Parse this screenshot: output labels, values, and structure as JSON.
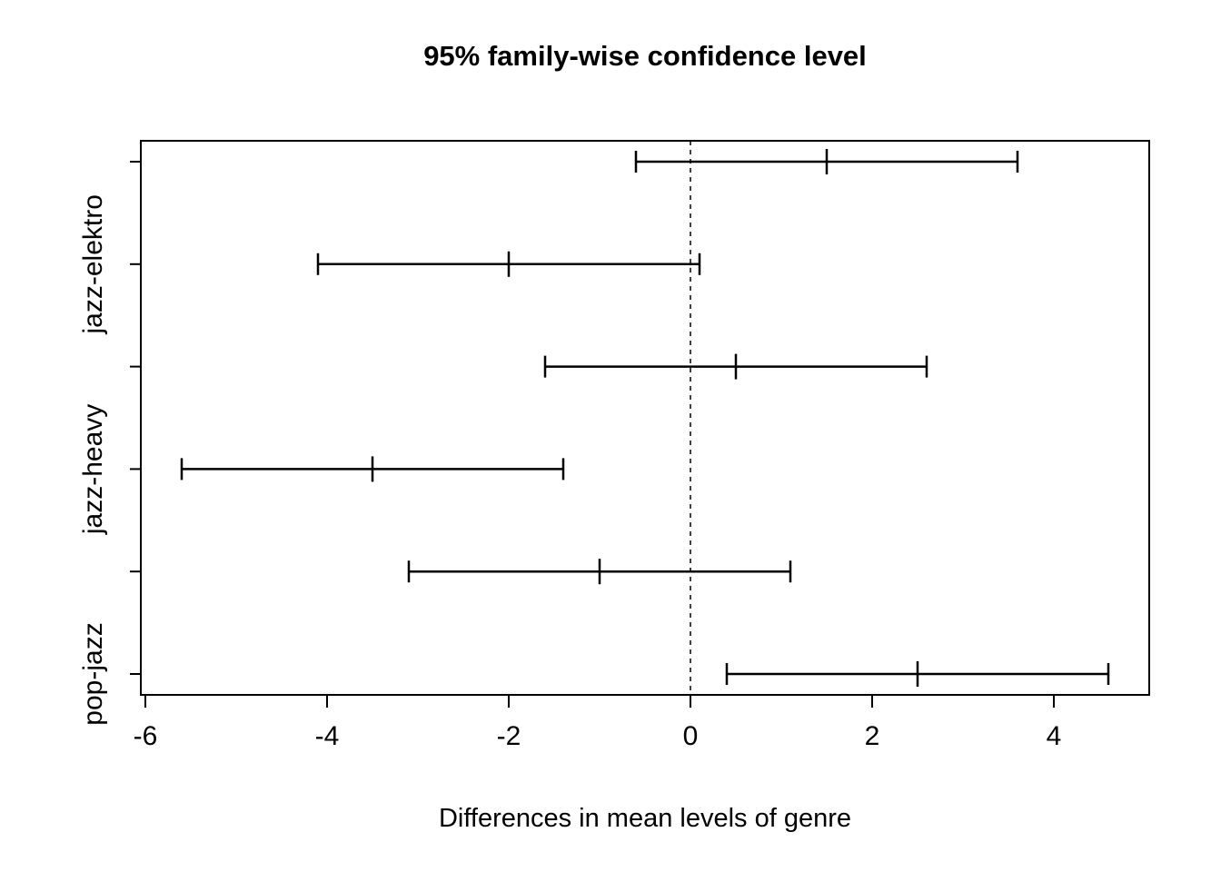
{
  "chart_data": {
    "type": "errorbar",
    "subtype": "tukey-hsd-confidence-intervals",
    "title": "95% family-wise confidence level",
    "xlabel": "Differences in mean levels of genre",
    "ylabel": "",
    "x_ticks": [
      -6,
      -4,
      -2,
      0,
      2,
      4
    ],
    "xlim": [
      -6.05,
      5.05
    ],
    "zero_line": 0,
    "grid": false,
    "legend_position": "none",
    "comparisons": [
      {
        "label": "",
        "estimate": 1.5,
        "lower": -0.6,
        "upper": 3.6
      },
      {
        "label": "jazz-elektro",
        "estimate": -2.0,
        "lower": -4.1,
        "upper": 0.1
      },
      {
        "label": "",
        "estimate": 0.5,
        "lower": -1.6,
        "upper": 2.6
      },
      {
        "label": "jazz-heavy",
        "estimate": -3.5,
        "lower": -5.6,
        "upper": -1.4
      },
      {
        "label": "",
        "estimate": -1.0,
        "lower": -3.1,
        "upper": 1.1
      },
      {
        "label": "pop-jazz",
        "estimate": 2.5,
        "lower": 0.4,
        "upper": 4.6
      }
    ]
  },
  "colors": {
    "foreground": "#000000",
    "background": "#ffffff"
  }
}
